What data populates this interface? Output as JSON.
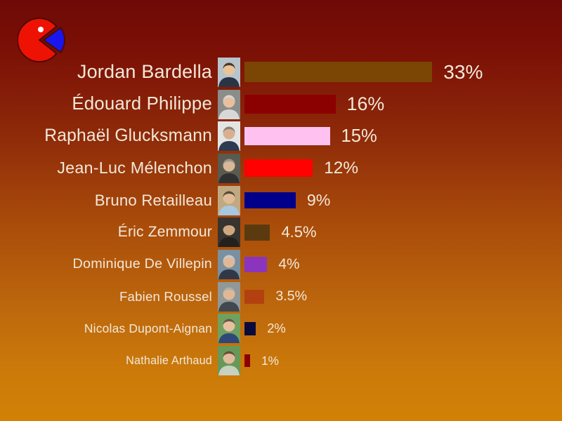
{
  "logo": {
    "name": "pie-pacman-logo",
    "body_color": "#EE1205",
    "wedge_color": "#1A16EE",
    "outline_color": "#4A0A03",
    "eye_color": "#FFFFFF"
  },
  "style": {
    "background_top": "#6E0A06",
    "background_bottom": "#D28106",
    "text_color": "#F2E8D9"
  },
  "chart_data": {
    "type": "bar",
    "orientation": "horizontal",
    "title": "",
    "xlabel": "",
    "ylabel": "",
    "xlim": [
      0,
      33
    ],
    "grid": false,
    "legend": false,
    "categories": [
      "Jordan Bardella",
      "Édouard Philippe",
      "Raphaël Glucksmann",
      "Jean-Luc Mélenchon",
      "Bruno Retailleau",
      "Éric Zemmour",
      "Dominique De Villepin",
      "Fabien Roussel",
      "Nicolas Dupont-Aignan",
      "Nathalie Arthaud"
    ],
    "values": [
      33,
      16,
      15,
      12,
      9,
      4.5,
      4,
      3.5,
      2,
      1
    ],
    "value_labels": [
      "33%",
      "16%",
      "15%",
      "12%",
      "9%",
      "4.5%",
      "4%",
      "3.5%",
      "2%",
      "1%"
    ],
    "bar_colors": [
      "#7B4504",
      "#8B0000",
      "#FFC2F0",
      "#FE0100",
      "#00008B",
      "#5B3A10",
      "#8B35BE",
      "#B34110",
      "#0A0A3C",
      "#8B0004"
    ],
    "photos": [
      {
        "bg": "#B8C4CC",
        "suit": "#2A3444",
        "skin": "#E8C49A",
        "hair": "#4A3828"
      },
      {
        "bg": "#8A8D8A",
        "suit": "#D8D8D8",
        "skin": "#E8C0A0",
        "hair": "#D8D4CC"
      },
      {
        "bg": "#E4E4E4",
        "suit": "#2E3A50",
        "skin": "#D8B090",
        "hair": "#8A8078"
      },
      {
        "bg": "#5A5A50",
        "suit": "#303030",
        "skin": "#D8B896",
        "hair": "#9A948A"
      },
      {
        "bg": "#C0A880",
        "suit": "#A8C8E0",
        "skin": "#E0BC96",
        "hair": "#5A4A3A"
      },
      {
        "bg": "#383430",
        "suit": "#24201C",
        "skin": "#D0A880",
        "hair": "#3A3230"
      },
      {
        "bg": "#7890A0",
        "suit": "#303848",
        "skin": "#E0B898",
        "hair": "#C8C8C8"
      },
      {
        "bg": "#909898",
        "suit": "#404850",
        "skin": "#E0B898",
        "hair": "#B0AEA8"
      },
      {
        "bg": "#70A060",
        "suit": "#304878",
        "skin": "#E8C0A0",
        "hair": "#6A5844"
      },
      {
        "bg": "#689858",
        "suit": "#C8D0C0",
        "skin": "#E0BC9C",
        "hair": "#6A4E36"
      }
    ]
  }
}
